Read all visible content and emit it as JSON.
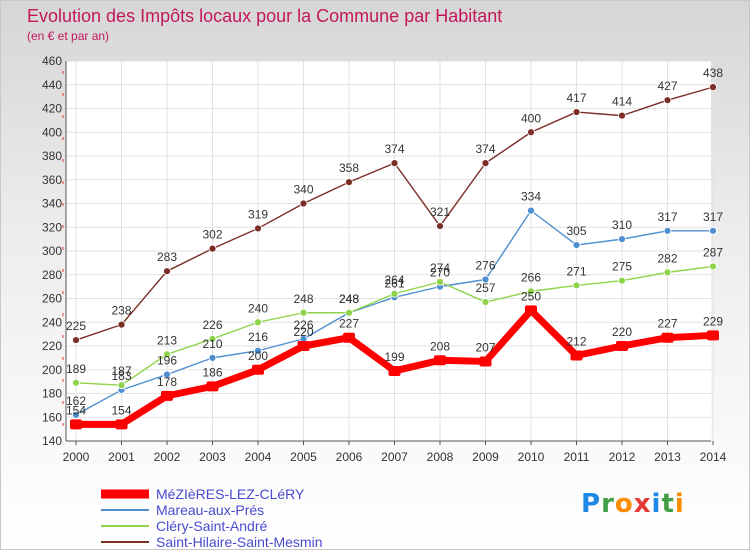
{
  "chart_data": {
    "type": "line",
    "title": "Evolution des Impôts locaux pour la Commune par Habitant",
    "subtitle": "(en € et par an)",
    "categories": [
      "2000",
      "2001",
      "2002",
      "2003",
      "2004",
      "2005",
      "2006",
      "2007",
      "2008",
      "2009",
      "2010",
      "2011",
      "2012",
      "2013",
      "2014"
    ],
    "ylim": [
      140,
      460
    ],
    "yticks": [
      140,
      160,
      180,
      200,
      220,
      240,
      260,
      280,
      300,
      320,
      340,
      360,
      380,
      400,
      420,
      440,
      460
    ],
    "grid": true,
    "legend_position": "bottom-left",
    "series": [
      {
        "name": "MéZIèRES-LEZ-CLéRY",
        "color": "#ff0000",
        "highlight": true,
        "values": [
          154,
          154,
          178,
          186,
          200,
          220,
          227,
          199,
          208,
          207,
          250,
          212,
          220,
          227,
          229
        ]
      },
      {
        "name": "Mareau-aux-Prés",
        "color": "#4d8fd1",
        "highlight": false,
        "values": [
          162,
          183,
          196,
          210,
          216,
          226,
          248,
          261,
          270,
          276,
          334,
          305,
          310,
          317,
          317
        ]
      },
      {
        "name": "Cléry-Saint-André",
        "color": "#8fd34a",
        "highlight": false,
        "values": [
          189,
          187,
          213,
          226,
          240,
          248,
          248,
          264,
          274,
          257,
          266,
          271,
          275,
          282,
          287
        ]
      },
      {
        "name": "Saint-Hilaire-Saint-Mesmin",
        "color": "#7b2d26",
        "highlight": false,
        "values": [
          225,
          238,
          283,
          302,
          319,
          340,
          358,
          374,
          321,
          374,
          400,
          417,
          414,
          427,
          438
        ]
      }
    ]
  },
  "logo": {
    "letters": [
      "P",
      "r",
      "o",
      "x",
      "i",
      "t",
      "i"
    ],
    "colors": [
      "#1e88e5",
      "#43a047",
      "#fb8c00",
      "#e53935",
      "#1e88e5",
      "#43a047",
      "#fb8c00"
    ]
  }
}
